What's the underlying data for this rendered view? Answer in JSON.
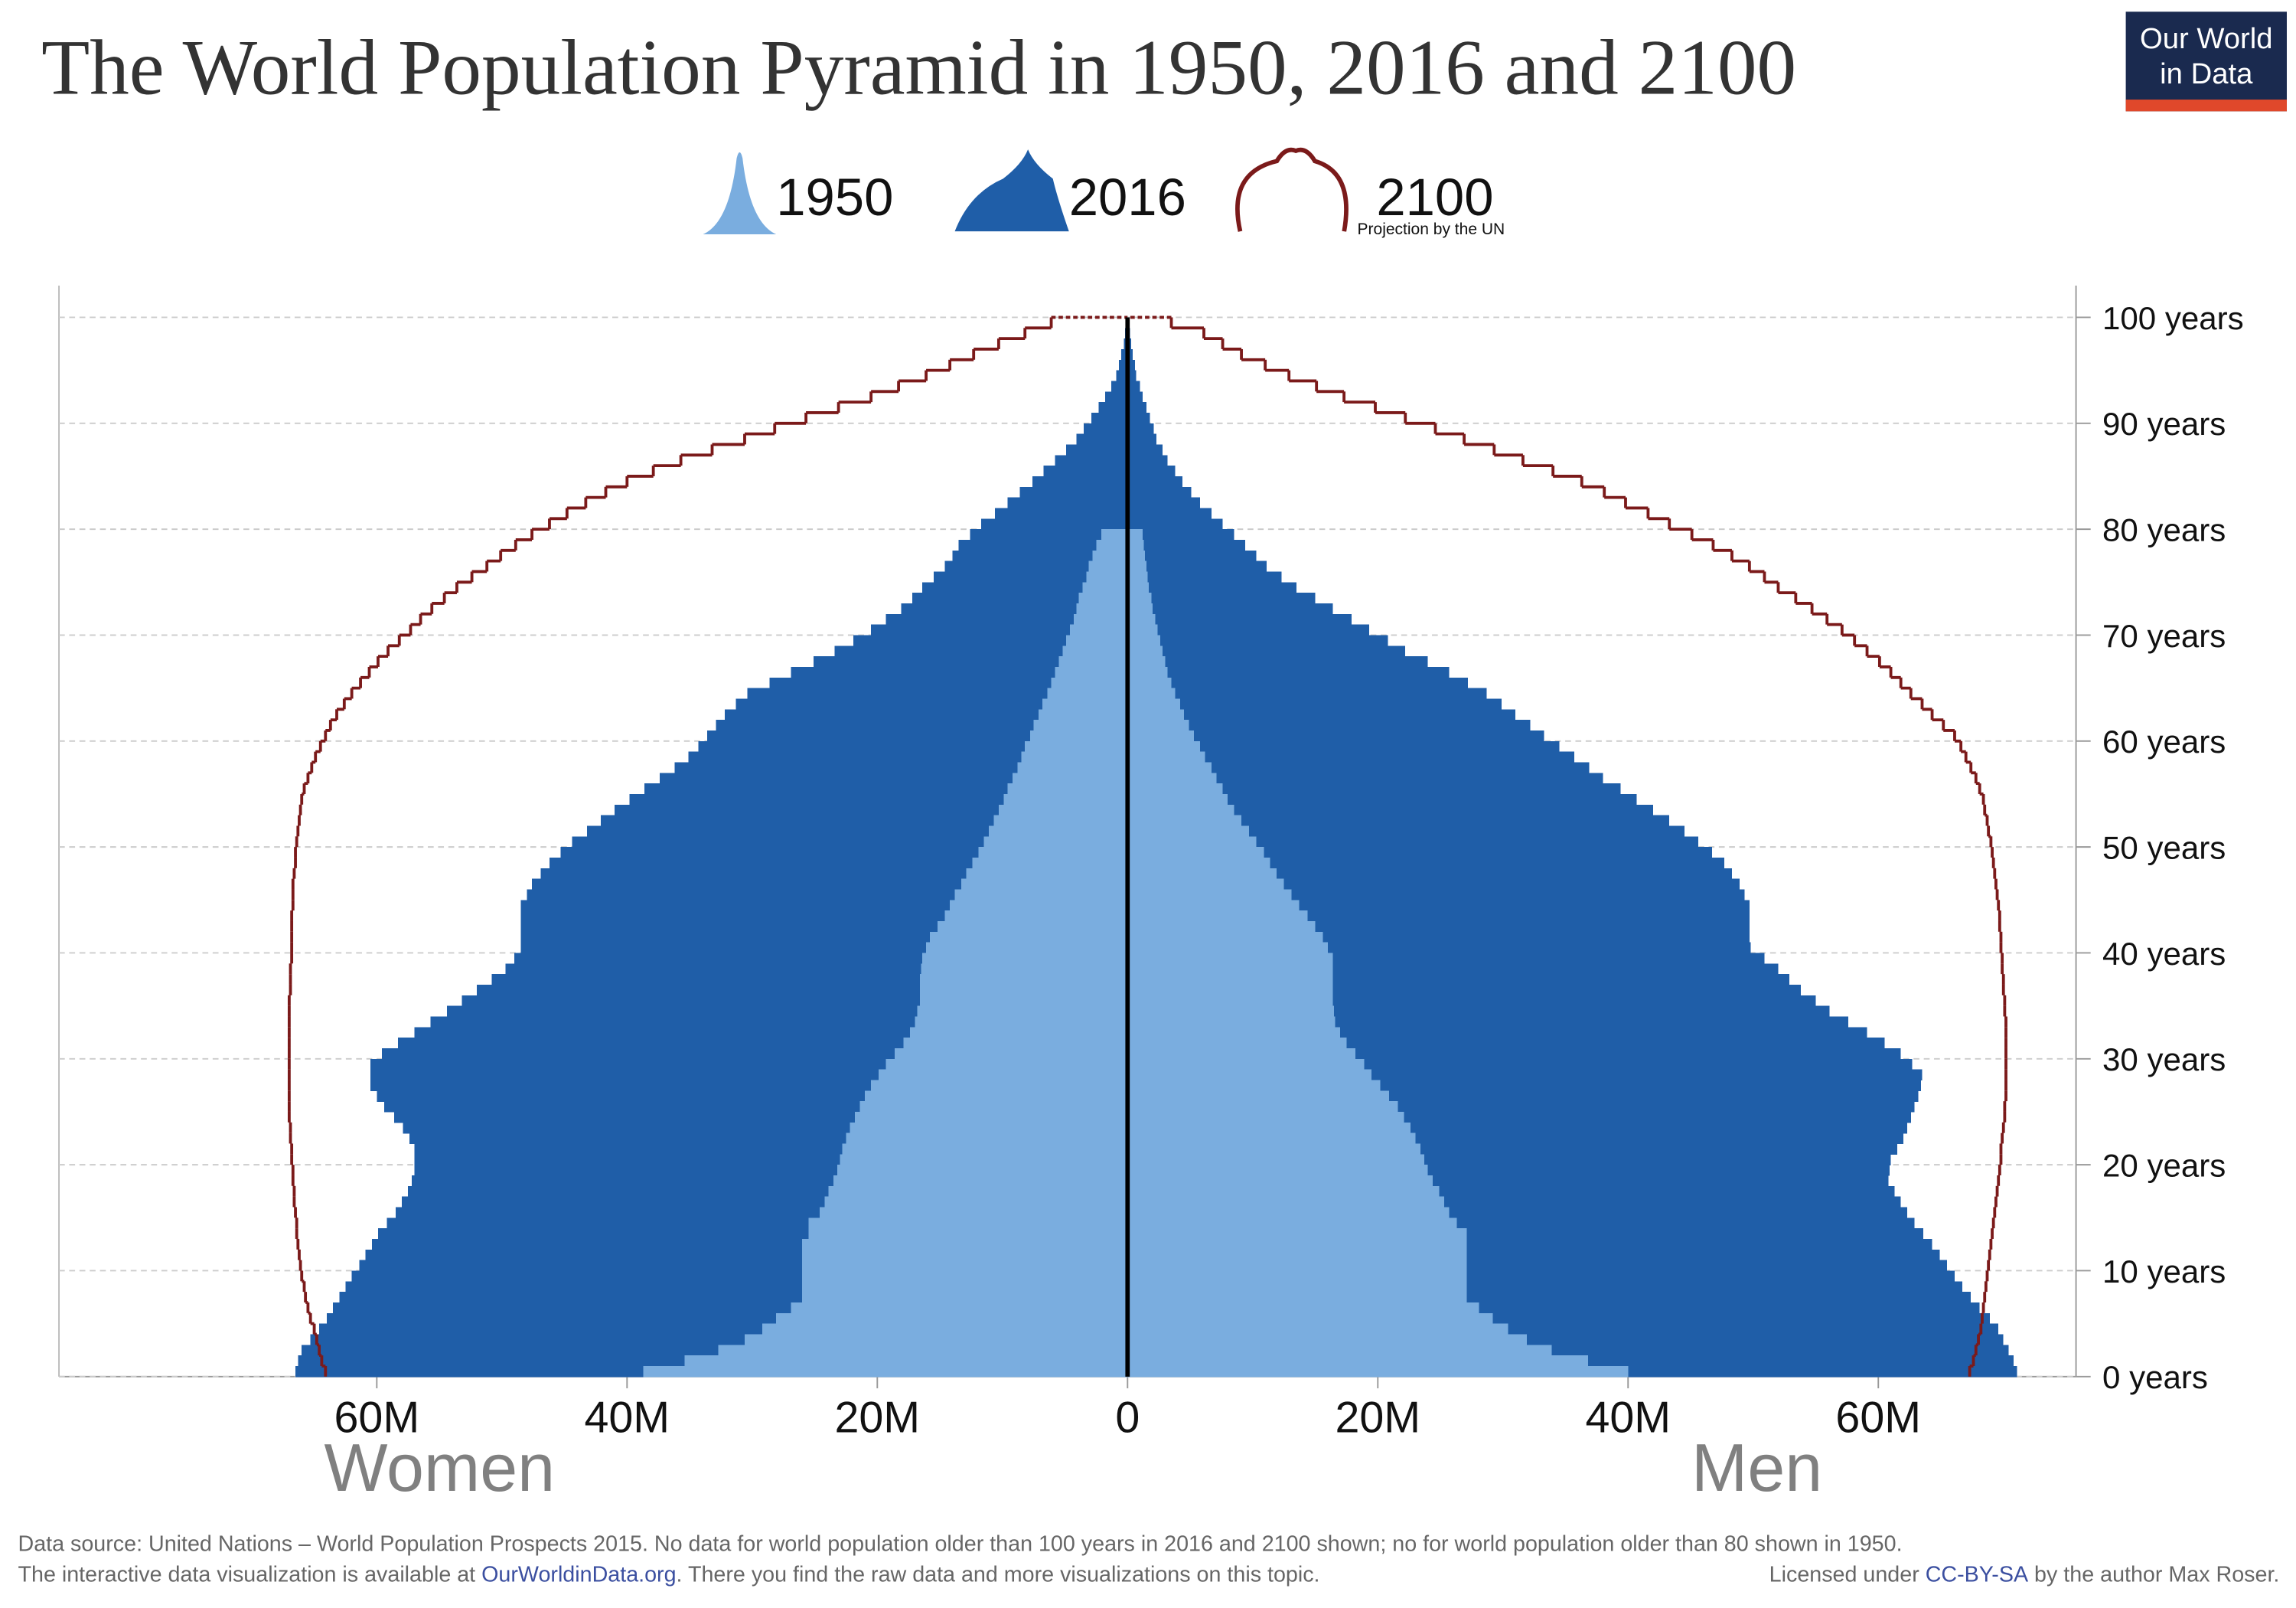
{
  "chart_data": {
    "type": "pyramid",
    "title": "The World Population Pyramid in 1950, 2016 and 2100",
    "logo": [
      "Our World",
      "in Data"
    ],
    "legend_note": "Projection by the UN",
    "side_labels": [
      "Women",
      "Men"
    ],
    "xlim": [
      -85.4,
      75.8
    ],
    "xticks": [
      {
        "value": -60,
        "label": "60M"
      },
      {
        "value": -40,
        "label": "40M"
      },
      {
        "value": -20,
        "label": "20M"
      },
      0,
      {
        "value": 20,
        "label": "20M"
      },
      {
        "value": 40,
        "label": "40M"
      },
      {
        "value": 60,
        "label": "60M"
      }
    ],
    "ylim": [
      0,
      103
    ],
    "yticks": [
      {
        "value": 0,
        "label": "0 years"
      },
      {
        "value": 10,
        "label": "10 years"
      },
      {
        "value": 20,
        "label": "20 years"
      },
      {
        "value": 30,
        "label": "30 years"
      },
      {
        "value": 40,
        "label": "40 years"
      },
      {
        "value": 50,
        "label": "50 years"
      },
      {
        "value": 60,
        "label": "60 years"
      },
      {
        "value": 70,
        "label": "70 years"
      },
      {
        "value": 80,
        "label": "80 years"
      },
      {
        "value": 90,
        "label": "90 years"
      },
      {
        "value": 100,
        "label": "100 years"
      }
    ],
    "grid": true,
    "series": [
      {
        "name": "1950",
        "color": "#7aaddf",
        "mark": "bars",
        "women": [
          38.7,
          35.4,
          32.7,
          30.6,
          29.2,
          28.1,
          26.9,
          26,
          26,
          26,
          26,
          26,
          26,
          25.5,
          25.5,
          24.6,
          24.2,
          23.9,
          23.5,
          23.2,
          23,
          22.8,
          22.5,
          22.2,
          21.8,
          21.4,
          21,
          20.5,
          19.9,
          19.3,
          18.6,
          17.9,
          17.4,
          17,
          16.8,
          16.6,
          16.6,
          16.6,
          16.5,
          16.4,
          16.1,
          15.8,
          15.2,
          14.6,
          14.2,
          13.8,
          13.3,
          12.9,
          12.4,
          11.9,
          11.5,
          11.1,
          10.7,
          10.3,
          9.9,
          9.6,
          9.2,
          8.8,
          8.5,
          8.2,
          7.8,
          7.5,
          7.1,
          6.8,
          6.4,
          6.1,
          5.8,
          5.5,
          5.2,
          4.9,
          4.6,
          4.3,
          4.1,
          3.9,
          3.6,
          3.3,
          3.1,
          2.8,
          2.5,
          2.1,
          null,
          null,
          null,
          null,
          null,
          null,
          null,
          null,
          null,
          null,
          null,
          null,
          null,
          null,
          null,
          null,
          null,
          null,
          null,
          null
        ],
        "men": [
          40,
          36.8,
          33.9,
          31.9,
          30.4,
          29.2,
          28.1,
          27.1,
          27.1,
          27.1,
          27.1,
          27.1,
          27.1,
          27.1,
          26.3,
          25.7,
          25.3,
          24.9,
          24.4,
          24,
          23.7,
          23.4,
          23,
          22.6,
          22.1,
          21.6,
          20.9,
          20.2,
          19.5,
          18.9,
          18.2,
          17.5,
          17,
          16.6,
          16.5,
          16.4,
          16.4,
          16.4,
          16.4,
          16.4,
          16,
          15.6,
          15,
          14.4,
          13.7,
          13.1,
          12.5,
          11.9,
          11.4,
          10.9,
          10.3,
          9.7,
          9.1,
          8.5,
          8,
          7.6,
          7.1,
          6.7,
          6.2,
          5.8,
          5.3,
          4.9,
          4.5,
          4.2,
          3.8,
          3.5,
          3.2,
          3,
          2.8,
          2.6,
          2.4,
          2.2,
          2,
          1.9,
          1.7,
          1.6,
          1.5,
          1.4,
          1.3,
          1.2,
          null,
          null,
          null,
          null,
          null,
          null,
          null,
          null,
          null,
          null,
          null,
          null,
          null,
          null,
          null,
          null,
          null,
          null,
          null,
          null
        ]
      },
      {
        "name": "2016",
        "color": "#1f5ea8",
        "mark": "bars",
        "women": [
          66.5,
          66.3,
          66,
          65.3,
          64.6,
          64,
          63.5,
          63,
          62.5,
          62,
          61.4,
          60.9,
          60.4,
          59.9,
          59.2,
          58.5,
          58,
          57.5,
          57.2,
          57,
          57,
          57,
          57.4,
          57.9,
          58.6,
          59.4,
          60,
          60.5,
          60.5,
          60.5,
          59.6,
          58.3,
          57,
          55.7,
          54.4,
          53.2,
          52,
          50.8,
          49.7,
          49,
          48.5,
          48.5,
          48.5,
          48.5,
          48.5,
          48,
          47.6,
          46.9,
          46.2,
          45.3,
          44.4,
          43.2,
          42.1,
          41,
          39.8,
          38.6,
          37.4,
          36.2,
          35.1,
          34.3,
          33.6,
          32.9,
          32.2,
          31.3,
          30.4,
          28.6,
          26.9,
          25.1,
          23.4,
          21.9,
          20.5,
          19.3,
          18.1,
          17.2,
          16.4,
          15.5,
          14.6,
          14,
          13.5,
          12.6,
          11.7,
          10.6,
          9.6,
          8.6,
          7.6,
          6.7,
          5.8,
          4.9,
          4.1,
          3.5,
          2.9,
          2.3,
          1.8,
          1.3,
          0.9,
          0.7,
          0.5,
          0.3,
          0.2,
          0.1
        ],
        "men": [
          71.1,
          70.8,
          70.4,
          70,
          69.6,
          68.9,
          68.1,
          67.4,
          66.7,
          66.1,
          65.5,
          64.9,
          64.3,
          63.6,
          62.9,
          62.3,
          61.8,
          61.3,
          60.8,
          60.9,
          61,
          61.5,
          62,
          62.3,
          62.6,
          62.9,
          63.2,
          63.4,
          63.5,
          62.7,
          61.8,
          60.5,
          59.1,
          57.6,
          56.1,
          55,
          53.8,
          52.9,
          52,
          50.9,
          49.8,
          49.7,
          49.7,
          49.7,
          49.7,
          49.3,
          48.9,
          48.3,
          47.7,
          46.7,
          45.6,
          44.5,
          43.3,
          42,
          40.7,
          39.4,
          38,
          36.9,
          35.7,
          34.5,
          33.3,
          32.2,
          31,
          29.9,
          28.7,
          27.2,
          25.7,
          24,
          22.2,
          20.8,
          19.3,
          17.9,
          16.4,
          15,
          13.5,
          12.3,
          11.1,
          10.3,
          9.4,
          8.5,
          7.6,
          6.7,
          5.8,
          5.1,
          4.4,
          3.8,
          3.2,
          2.8,
          2.3,
          2.1,
          1.8,
          1.5,
          1.2,
          1,
          0.7,
          0.6,
          0.4,
          0.3,
          0.2,
          0.1
        ]
      },
      {
        "name": "2100",
        "color": "#7b1a1a",
        "mark": "outline",
        "women": [
          64.1,
          64.4,
          64.6,
          64.8,
          65,
          65.3,
          65.5,
          65.7,
          65.8,
          66,
          66.1,
          66.2,
          66.3,
          66.4,
          66.4,
          66.5,
          66.6,
          66.6,
          66.7,
          66.7,
          66.8,
          66.8,
          66.9,
          66.9,
          67,
          67,
          67,
          67,
          67,
          67,
          67,
          67,
          67,
          67,
          67,
          67,
          66.9,
          66.9,
          66.9,
          66.8,
          66.8,
          66.8,
          66.8,
          66.8,
          66.7,
          66.7,
          66.7,
          66.6,
          66.5,
          66.5,
          66.4,
          66.3,
          66.2,
          66.1,
          66,
          65.8,
          65.5,
          65.2,
          64.9,
          64.5,
          64.1,
          63.7,
          63.2,
          62.6,
          62,
          61.3,
          60.6,
          59.9,
          59.1,
          58.2,
          57.3,
          56.5,
          55.6,
          54.6,
          53.6,
          52.4,
          51.2,
          50.1,
          48.9,
          47.6,
          46.2,
          44.8,
          43.3,
          41.7,
          40,
          37.9,
          35.7,
          33.2,
          30.6,
          28.2,
          25.7,
          23.1,
          20.5,
          18.3,
          16.1,
          14.2,
          12.3,
          10.3,
          8.2,
          6.1
        ],
        "men": [
          67.3,
          67.6,
          67.8,
          68,
          68.2,
          68.3,
          68.4,
          68.5,
          68.6,
          68.7,
          68.8,
          68.9,
          69,
          69.1,
          69.2,
          69.3,
          69.4,
          69.5,
          69.6,
          69.7,
          69.8,
          69.8,
          69.9,
          70,
          70.1,
          70.1,
          70.2,
          70.2,
          70.2,
          70.2,
          70.2,
          70.2,
          70.2,
          70.2,
          70.1,
          70.1,
          70,
          70,
          69.9,
          69.9,
          69.8,
          69.8,
          69.7,
          69.7,
          69.6,
          69.5,
          69.4,
          69.3,
          69.2,
          69.1,
          69,
          68.8,
          68.7,
          68.5,
          68.4,
          68.1,
          67.8,
          67.4,
          67,
          66.6,
          66.1,
          65.2,
          64.3,
          63.5,
          62.6,
          61.8,
          61,
          60.1,
          59.1,
          58.1,
          57.1,
          55.9,
          54.7,
          53.4,
          52,
          50.9,
          49.7,
          48.3,
          46.8,
          45.1,
          43.3,
          41.6,
          39.8,
          38.1,
          36.3,
          34,
          31.6,
          29.3,
          26.9,
          24.6,
          22.2,
          19.8,
          17.3,
          15.1,
          12.9,
          11,
          9.1,
          7.6,
          6.1,
          3.5
        ]
      }
    ],
    "footer": {
      "line1": "Data source: United Nations – World Population Prospects 2015. No data for world population older than 100 years in 2016 and 2100 shown; no for world population older than 80 shown in 1950.",
      "line2": [
        "The interactive data visualization is available at ",
        "OurWorldinData.org",
        ". There you find the raw data and more visualizations on this topic."
      ],
      "license": [
        "Licensed under ",
        "CC-BY-SA",
        " by the author Max Roser."
      ]
    }
  }
}
